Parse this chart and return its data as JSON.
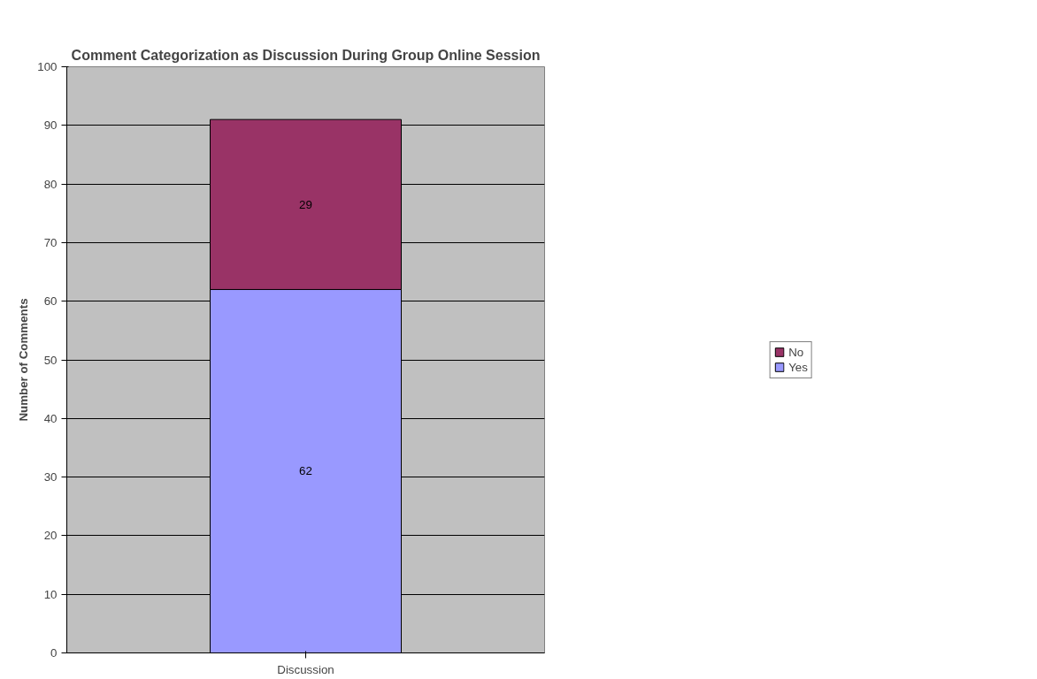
{
  "chart_data": {
    "type": "bar",
    "title": "Comment Categorization as Discussion During Group Online Session",
    "ylabel": "Number of Comments",
    "categories": [
      "Discussion"
    ],
    "series": [
      {
        "name": "Yes",
        "color": "#9999ff",
        "values": [
          62
        ]
      },
      {
        "name": "No",
        "color": "#993366",
        "values": [
          29
        ]
      }
    ],
    "stacked": true,
    "ylim": [
      0,
      100
    ],
    "yticks": [
      0,
      10,
      20,
      30,
      40,
      50,
      60,
      70,
      80,
      90,
      100
    ],
    "grid": "y",
    "legend": "right",
    "data_labels": true
  }
}
